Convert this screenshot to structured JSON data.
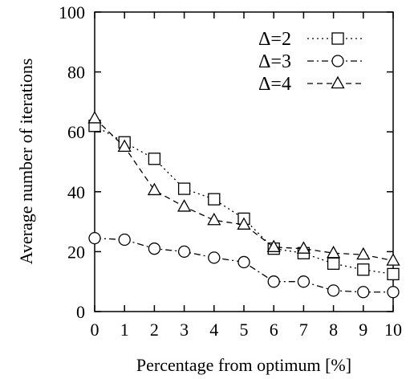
{
  "chart_data": {
    "type": "line",
    "xlabel": "Percentage from optimum [%]",
    "ylabel": "Average number of iterations",
    "x": [
      0,
      1,
      2,
      3,
      4,
      5,
      6,
      7,
      8,
      9,
      10
    ],
    "xlim": [
      0,
      10
    ],
    "ylim": [
      0,
      100
    ],
    "xticks": [
      0,
      1,
      2,
      3,
      4,
      5,
      6,
      7,
      8,
      9,
      10
    ],
    "yticks": [
      0,
      20,
      40,
      60,
      80,
      100
    ],
    "grid": false,
    "legend_position": "top-right",
    "series": [
      {
        "name": "Δ=2",
        "marker": "square",
        "line_style": "dotted",
        "values": [
          62,
          56.5,
          51,
          41,
          37.5,
          31,
          21,
          19.5,
          16,
          14,
          12.5
        ]
      },
      {
        "name": "Δ=3",
        "marker": "circle",
        "line_style": "dash-dot",
        "values": [
          24.5,
          24,
          21,
          20,
          18,
          16.5,
          10,
          10,
          7,
          6.5,
          6.5
        ]
      },
      {
        "name": "Δ=4",
        "marker": "triangle",
        "line_style": "dashed",
        "values": [
          64.5,
          55,
          40.5,
          35,
          30.5,
          29,
          21.5,
          21,
          19.5,
          19,
          17
        ]
      }
    ]
  }
}
